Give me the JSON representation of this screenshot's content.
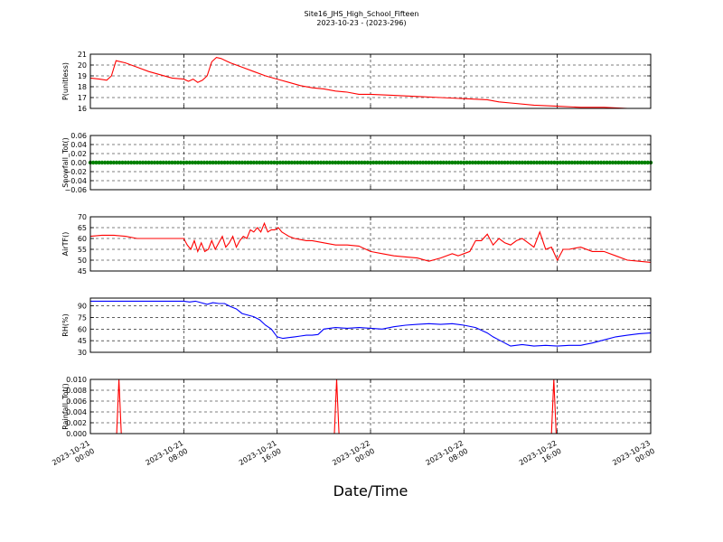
{
  "figure": {
    "title": "Site16_JHS_High_School_Fifteen",
    "subtitle": "2023-10-23 - (2023-296)",
    "xlabel": "Date/Time"
  },
  "chart_data": [
    {
      "type": "line",
      "ylabel": "P(unitless)",
      "ylim": [
        16,
        21
      ],
      "yticks": [
        "16",
        "17",
        "18",
        "19",
        "20",
        "21"
      ],
      "grid": true,
      "color": "#ff0000",
      "x": [
        0,
        0.8,
        1.4,
        1.8,
        2.2,
        3,
        4,
        5,
        6,
        7,
        8,
        8.4,
        8.8,
        9.2,
        9.6,
        10,
        10.4,
        10.8,
        11.2,
        11.6,
        12,
        13,
        14,
        15,
        16,
        17,
        18,
        19,
        20,
        21,
        22,
        23,
        24,
        26,
        28,
        30,
        32,
        34,
        35,
        36,
        38,
        40,
        42,
        44,
        46,
        48
      ],
      "y": [
        18.8,
        18.7,
        18.6,
        19.0,
        20.4,
        20.2,
        19.8,
        19.4,
        19.1,
        18.8,
        18.7,
        18.5,
        18.7,
        18.4,
        18.6,
        19.0,
        20.3,
        20.7,
        20.6,
        20.4,
        20.2,
        19.8,
        19.4,
        19.0,
        18.7,
        18.4,
        18.1,
        17.9,
        17.8,
        17.6,
        17.5,
        17.3,
        17.3,
        17.2,
        17.1,
        17.0,
        16.9,
        16.8,
        16.6,
        16.5,
        16.3,
        16.2,
        16.1,
        16.1,
        16.0,
        16.0
      ]
    },
    {
      "type": "scatter",
      "ylabel": "Snowfall_Tot()",
      "ylim": [
        -0.06,
        0.06
      ],
      "yticks": [
        "−0.06",
        "−0.04",
        "−0.02",
        "0.00",
        "0.02",
        "0.04",
        "0.06"
      ],
      "grid": true,
      "color": "#008000",
      "x_start": 0,
      "x_end": 48,
      "value": 0.0
    },
    {
      "type": "line",
      "ylabel": "AirTF()",
      "ylim": [
        45,
        70
      ],
      "yticks": [
        "45",
        "50",
        "55",
        "60",
        "65",
        "70"
      ],
      "grid": true,
      "color": "#ff0000",
      "x": [
        0,
        1,
        2,
        3,
        4,
        5,
        6,
        7,
        8,
        8.3,
        8.6,
        8.9,
        9.2,
        9.5,
        9.8,
        10.1,
        10.4,
        10.7,
        11,
        11.3,
        11.6,
        11.9,
        12.2,
        12.5,
        12.8,
        13.1,
        13.4,
        13.7,
        14,
        14.3,
        14.6,
        14.9,
        15.2,
        15.5,
        15.8,
        16.1,
        16.4,
        16.7,
        17,
        17.5,
        18,
        18.5,
        19,
        20,
        21,
        22,
        23,
        24,
        25,
        26,
        27,
        28,
        29,
        30,
        31,
        31.5,
        32,
        32.5,
        33,
        33.5,
        34,
        34.5,
        35,
        35.5,
        36,
        36.5,
        37,
        37.5,
        38,
        38.5,
        39,
        39.5,
        40,
        40.5,
        41,
        42,
        43,
        44,
        45,
        46,
        47,
        48
      ],
      "y": [
        61,
        61.5,
        61.5,
        61,
        60,
        60,
        60,
        60,
        60,
        57,
        55,
        59,
        54,
        58,
        54,
        55,
        59,
        55,
        58,
        61,
        56,
        58,
        61,
        56,
        59,
        61,
        60,
        64,
        63,
        65,
        63,
        67,
        63,
        64,
        64,
        65,
        63,
        62,
        61,
        60,
        59.5,
        59,
        59,
        58,
        57,
        57,
        56.5,
        54,
        53,
        52,
        51.5,
        51,
        49.5,
        51,
        53,
        52,
        53,
        54,
        59,
        59,
        62,
        57,
        60,
        58,
        57,
        59,
        60,
        58,
        56,
        63,
        55,
        56,
        50,
        55,
        55,
        56,
        54,
        54,
        52,
        50,
        49.5,
        49
      ]
    },
    {
      "type": "line",
      "ylabel": "RH(%)",
      "ylim": [
        30,
        100
      ],
      "yticks": [
        "30",
        "45",
        "60",
        "75",
        "90"
      ],
      "grid": true,
      "color": "#0000ff",
      "x": [
        0,
        2,
        4,
        6,
        8,
        8.5,
        9,
        9.5,
        10,
        10.5,
        11,
        11.5,
        12,
        12.5,
        13,
        13.5,
        14,
        14.5,
        15,
        15.5,
        16,
        16.5,
        17,
        17.5,
        18,
        18.5,
        19,
        19.5,
        20,
        21,
        22,
        23,
        24,
        25,
        26,
        27,
        28,
        29,
        30,
        31,
        32,
        33,
        34,
        34.5,
        35,
        35.5,
        36,
        37,
        38,
        39,
        40,
        41,
        42,
        43,
        44,
        45,
        46,
        47,
        48
      ],
      "y": [
        96,
        96,
        96,
        96,
        96,
        95,
        96,
        94,
        92,
        94,
        93,
        93,
        89,
        86,
        80,
        78,
        76,
        72,
        65,
        60,
        50,
        48,
        49,
        50,
        51,
        52,
        52,
        53,
        60,
        62,
        61,
        62,
        61,
        60,
        63,
        65,
        66,
        67,
        66,
        67,
        65,
        62,
        55,
        50,
        46,
        42,
        38,
        40,
        38,
        39,
        38,
        39,
        39,
        42,
        46,
        50,
        52,
        54,
        55
      ]
    },
    {
      "type": "line",
      "ylabel": "Rainfall_Tot()",
      "ylim": [
        0,
        0.01
      ],
      "yticks": [
        "0.000",
        "0.002",
        "0.004",
        "0.006",
        "0.008",
        "0.010"
      ],
      "grid": true,
      "color": "#ff0000",
      "x": [
        0,
        2.25,
        2.45,
        2.65,
        20.9,
        21.1,
        21.3,
        39.5,
        39.7,
        39.9,
        48
      ],
      "y": [
        0,
        0,
        0.01,
        0,
        0,
        0.01,
        0,
        0,
        0.01,
        0,
        0
      ]
    }
  ],
  "x_axis": {
    "range_hours": [
      0,
      48
    ],
    "tick_hours": [
      0,
      8,
      16,
      24,
      32,
      40,
      48
    ],
    "tick_labels": [
      [
        "2023-10-21",
        "00:00"
      ],
      [
        "2023-10-21",
        "08:00"
      ],
      [
        "2023-10-21",
        "16:00"
      ],
      [
        "2023-10-22",
        "00:00"
      ],
      [
        "2023-10-22",
        "08:00"
      ],
      [
        "2023-10-22",
        "16:00"
      ],
      [
        "2023-10-23",
        "00:00"
      ]
    ]
  }
}
